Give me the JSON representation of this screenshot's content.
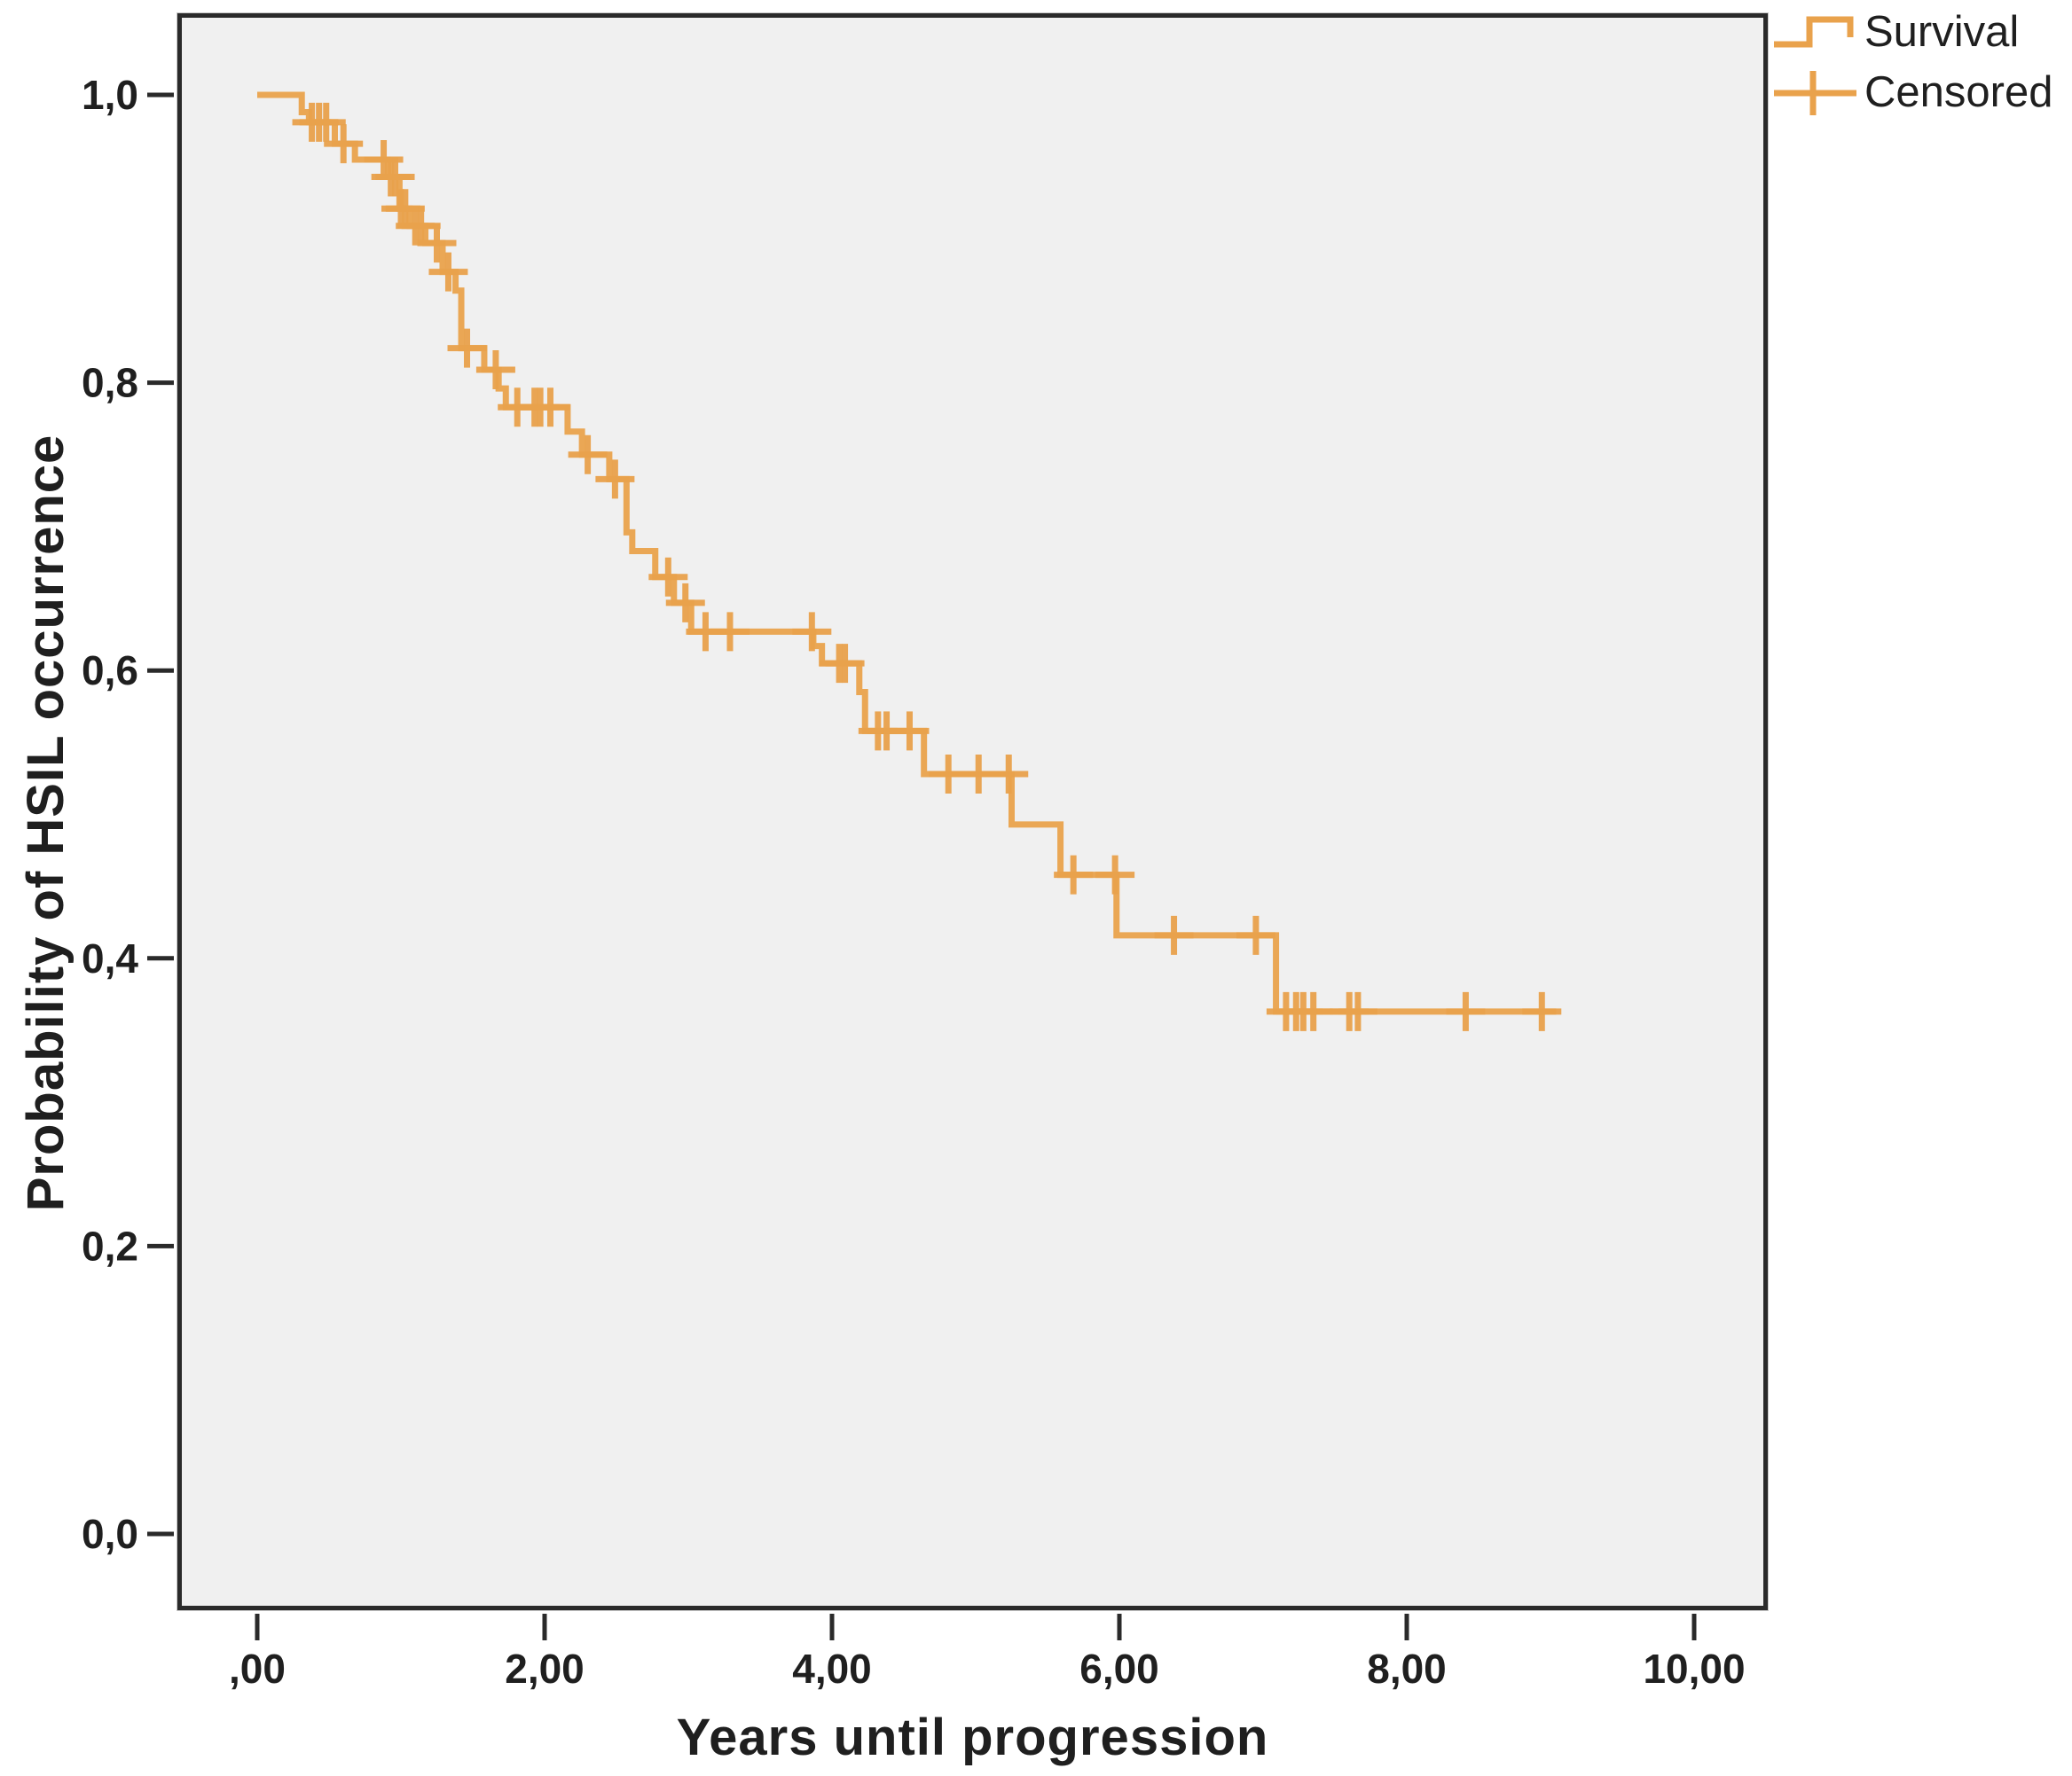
{
  "chart_data": {
    "type": "line",
    "subtype": "kaplan-meier-step",
    "title": "",
    "xlabel": "Years until progression",
    "ylabel": "Probability of HSIL occurrence",
    "x_tick_labels": [
      ",00",
      "2,00",
      "4,00",
      "6,00",
      "8,00",
      "10,00"
    ],
    "x_tick_values": [
      0,
      2,
      4,
      6,
      8,
      10
    ],
    "y_tick_labels": [
      "0,0",
      "0,2",
      "0,4",
      "0,6",
      "0,8",
      "1,0"
    ],
    "y_tick_values": [
      0,
      0.2,
      0.4,
      0.6,
      0.8,
      1.0
    ],
    "xlim": [
      -0.56,
      10.52
    ],
    "ylim": [
      -0.056,
      1.055
    ],
    "grid": false,
    "legend": {
      "position": "top-right-outside",
      "entries": [
        {
          "label": "Survival",
          "marker": "step-line"
        },
        {
          "label": "Censored",
          "marker": "plus"
        }
      ]
    },
    "series": [
      {
        "name": "Survival",
        "color": "#e9a24c",
        "end_time": 9.04,
        "step_points": [
          [
            0.0,
            1.0
          ],
          [
            0.31,
            0.988
          ],
          [
            0.36,
            0.981
          ],
          [
            0.54,
            0.966
          ],
          [
            0.68,
            0.955
          ],
          [
            0.91,
            0.943
          ],
          [
            0.99,
            0.921
          ],
          [
            1.06,
            0.909
          ],
          [
            1.17,
            0.897
          ],
          [
            1.29,
            0.877
          ],
          [
            1.38,
            0.864
          ],
          [
            1.42,
            0.824
          ],
          [
            1.58,
            0.809
          ],
          [
            1.68,
            0.796
          ],
          [
            1.73,
            0.783
          ],
          [
            2.16,
            0.766
          ],
          [
            2.26,
            0.75
          ],
          [
            2.45,
            0.733
          ],
          [
            2.57,
            0.696
          ],
          [
            2.61,
            0.683
          ],
          [
            2.77,
            0.665
          ],
          [
            2.9,
            0.647
          ],
          [
            3.02,
            0.627
          ],
          [
            3.87,
            0.617
          ],
          [
            3.93,
            0.605
          ],
          [
            4.19,
            0.585
          ],
          [
            4.23,
            0.558
          ],
          [
            4.64,
            0.528
          ],
          [
            5.25,
            0.493
          ],
          [
            5.59,
            0.458
          ],
          [
            5.98,
            0.416
          ],
          [
            7.09,
            0.363
          ]
        ],
        "censored_points": [
          [
            0.38,
            0.981
          ],
          [
            0.43,
            0.981
          ],
          [
            0.48,
            0.981
          ],
          [
            0.6,
            0.966
          ],
          [
            0.88,
            0.955
          ],
          [
            0.93,
            0.943
          ],
          [
            0.96,
            0.943
          ],
          [
            1.0,
            0.921
          ],
          [
            1.03,
            0.921
          ],
          [
            1.1,
            0.909
          ],
          [
            1.14,
            0.909
          ],
          [
            1.25,
            0.897
          ],
          [
            1.33,
            0.877
          ],
          [
            1.46,
            0.824
          ],
          [
            1.66,
            0.809
          ],
          [
            1.81,
            0.783
          ],
          [
            1.93,
            0.783
          ],
          [
            1.97,
            0.783
          ],
          [
            2.04,
            0.783
          ],
          [
            2.3,
            0.75
          ],
          [
            2.49,
            0.733
          ],
          [
            2.86,
            0.665
          ],
          [
            2.98,
            0.647
          ],
          [
            3.12,
            0.627
          ],
          [
            3.29,
            0.627
          ],
          [
            3.86,
            0.627
          ],
          [
            4.05,
            0.605
          ],
          [
            4.09,
            0.605
          ],
          [
            4.32,
            0.558
          ],
          [
            4.38,
            0.558
          ],
          [
            4.54,
            0.558
          ],
          [
            4.81,
            0.528
          ],
          [
            5.02,
            0.528
          ],
          [
            5.23,
            0.528
          ],
          [
            5.68,
            0.458
          ],
          [
            5.97,
            0.458
          ],
          [
            6.38,
            0.416
          ],
          [
            6.95,
            0.416
          ],
          [
            7.16,
            0.363
          ],
          [
            7.23,
            0.363
          ],
          [
            7.28,
            0.363
          ],
          [
            7.35,
            0.363
          ],
          [
            7.6,
            0.363
          ],
          [
            7.66,
            0.363
          ],
          [
            8.41,
            0.363
          ],
          [
            8.94,
            0.363
          ]
        ]
      }
    ]
  },
  "colors": {
    "curve": "#e9a24c",
    "plot_background": "#f0f0f0",
    "frame": "#2a2a2a",
    "text": "#1f1f1f"
  }
}
